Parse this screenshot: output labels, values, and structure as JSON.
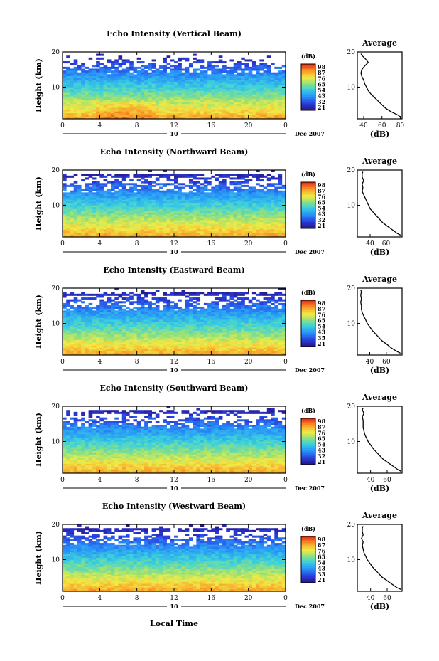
{
  "figure": {
    "xlabel": "Local Time",
    "day_label": "10",
    "date_label": "Dec 2007"
  },
  "chart_data": [
    {
      "type": "heatmap",
      "title": "Echo Intensity (Vertical Beam)",
      "ylabel": "Height (km)",
      "x_ticks": [
        "0",
        "4",
        "8",
        "12",
        "16",
        "20",
        "0"
      ],
      "y_ticks": [
        "20",
        "10"
      ],
      "xlim": [
        0,
        24
      ],
      "ylim": [
        1,
        20
      ],
      "colorbar": {
        "unit": "(dB)",
        "ticks": [
          "98",
          "87",
          "76",
          "65",
          "54",
          "43",
          "32",
          "21"
        ]
      },
      "profile": {
        "title": "Average",
        "xlabel": "(dB)",
        "x_ticks": [
          "40",
          "60",
          "80"
        ],
        "y_ticks": [
          "20",
          "10"
        ],
        "xlim": [
          33,
          82
        ],
        "ylim": [
          1,
          20
        ],
        "heights": [
          1.5,
          2,
          3,
          4,
          5,
          6,
          7,
          8,
          9,
          10,
          11,
          12,
          13,
          14,
          15,
          16,
          17,
          18,
          19,
          19.5
        ],
        "values": [
          80,
          78,
          70,
          64,
          60,
          56,
          52,
          48,
          45,
          43,
          41,
          40,
          38,
          37,
          38,
          41,
          45,
          42,
          38,
          37
        ]
      }
    },
    {
      "type": "heatmap",
      "title": "Echo Intensity (Northward Beam)",
      "ylabel": "Height (km)",
      "x_ticks": [
        "0",
        "4",
        "8",
        "12",
        "16",
        "20",
        "0"
      ],
      "y_ticks": [
        "20",
        "10"
      ],
      "xlim": [
        0,
        24
      ],
      "ylim": [
        1,
        20
      ],
      "colorbar": {
        "unit": "(dB)",
        "ticks": [
          "98",
          "87",
          "76",
          "65",
          "54",
          "43",
          "32",
          "21"
        ]
      },
      "profile": {
        "title": "Average",
        "xlabel": "(dB)",
        "x_ticks": [
          "40",
          "60"
        ],
        "y_ticks": [
          "20",
          "10"
        ],
        "xlim": [
          24,
          80
        ],
        "ylim": [
          1,
          20
        ],
        "heights": [
          1.5,
          2,
          3,
          4,
          5,
          6,
          7,
          8,
          9,
          10,
          11,
          12,
          13,
          14,
          15,
          16,
          17,
          18,
          19,
          19.5
        ],
        "values": [
          78,
          74,
          68,
          62,
          56,
          52,
          48,
          44,
          40,
          38,
          36,
          34,
          32,
          30,
          31,
          30,
          32,
          30,
          30,
          31
        ]
      }
    },
    {
      "type": "heatmap",
      "title": "Echo Intensity (Eastward Beam)",
      "ylabel": "Height (km)",
      "x_ticks": [
        "0",
        "4",
        "8",
        "12",
        "16",
        "20",
        "0"
      ],
      "y_ticks": [
        "20",
        "10"
      ],
      "xlim": [
        0,
        24
      ],
      "ylim": [
        1,
        20
      ],
      "colorbar": {
        "unit": "(dB)",
        "ticks": [
          "98",
          "87",
          "76",
          "65",
          "54",
          "43",
          "35",
          "21"
        ]
      },
      "profile": {
        "title": "Average",
        "xlabel": "(dB)",
        "x_ticks": [
          "40",
          "60"
        ],
        "y_ticks": [
          "20",
          "10"
        ],
        "xlim": [
          25,
          79
        ],
        "ylim": [
          1,
          20
        ],
        "heights": [
          1.5,
          2,
          3,
          4,
          5,
          6,
          7,
          8,
          9,
          10,
          11,
          12,
          13,
          14,
          15,
          16,
          17,
          18,
          19,
          19.5
        ],
        "values": [
          77,
          73,
          66,
          61,
          55,
          51,
          47,
          43,
          40,
          37,
          35,
          33,
          31,
          30,
          30,
          29,
          30,
          29,
          30,
          29
        ]
      }
    },
    {
      "type": "heatmap",
      "title": "Echo Intensity (Southward Beam)",
      "ylabel": "Height (km)",
      "x_ticks": [
        "0",
        "4",
        "8",
        "12",
        "16",
        "20",
        "0"
      ],
      "y_ticks": [
        "20",
        "10"
      ],
      "xlim": [
        0,
        24
      ],
      "ylim": [
        1,
        20
      ],
      "colorbar": {
        "unit": "(dB)",
        "ticks": [
          "98",
          "87",
          "76",
          "65",
          "54",
          "43",
          "32",
          "21"
        ]
      },
      "profile": {
        "title": "Average",
        "xlabel": "(dB)",
        "x_ticks": [
          "40",
          "60"
        ],
        "y_ticks": [
          "20",
          "10"
        ],
        "xlim": [
          24,
          78
        ],
        "ylim": [
          1,
          20
        ],
        "heights": [
          1.5,
          2,
          3,
          4,
          5,
          6,
          7,
          8,
          9,
          10,
          11,
          12,
          13,
          14,
          15,
          16,
          17,
          18,
          19,
          19.5
        ],
        "values": [
          77,
          73,
          67,
          61,
          55,
          51,
          47,
          43,
          40,
          37,
          35,
          33,
          32,
          31,
          31,
          31,
          30,
          32,
          30,
          31
        ]
      }
    },
    {
      "type": "heatmap",
      "title": "Echo Intensity (Westward Beam)",
      "ylabel": "Height (km)",
      "x_ticks": [
        "0",
        "4",
        "8",
        "12",
        "16",
        "20",
        "0"
      ],
      "y_ticks": [
        "20",
        "10"
      ],
      "xlim": [
        0,
        24
      ],
      "ylim": [
        1,
        20
      ],
      "colorbar": {
        "unit": "(dB)",
        "ticks": [
          "98",
          "87",
          "76",
          "65",
          "54",
          "43",
          "33",
          "21"
        ]
      },
      "profile": {
        "title": "Average",
        "xlabel": "(dB)",
        "x_ticks": [
          "40",
          "60"
        ],
        "y_ticks": [
          "20",
          "10"
        ],
        "xlim": [
          24,
          78
        ],
        "ylim": [
          1,
          20
        ],
        "heights": [
          1.5,
          2,
          3,
          4,
          5,
          6,
          7,
          8,
          9,
          10,
          11,
          12,
          13,
          14,
          15,
          16,
          17,
          18,
          19,
          19.5
        ],
        "values": [
          77,
          72,
          66,
          60,
          54,
          50,
          46,
          42,
          39,
          36,
          34,
          32,
          31,
          30,
          31,
          29,
          31,
          30,
          30,
          31
        ]
      }
    }
  ]
}
